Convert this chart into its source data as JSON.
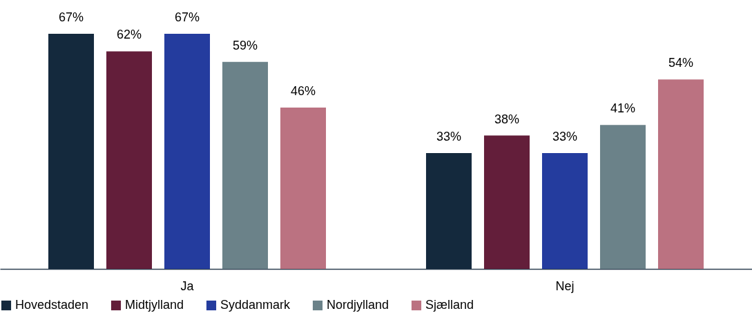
{
  "chart_data": {
    "type": "bar",
    "categories": [
      "Ja",
      "Nej"
    ],
    "series": [
      {
        "name": "Hovedstaden",
        "color": "#14293d",
        "values": [
          67,
          33
        ],
        "value_labels": [
          "67%",
          "33%"
        ]
      },
      {
        "name": "Midtjylland",
        "color": "#631e3a",
        "values": [
          62,
          38
        ],
        "value_labels": [
          "62%",
          "38%"
        ]
      },
      {
        "name": "Syddanmark",
        "color": "#243c9e",
        "values": [
          67,
          33
        ],
        "value_labels": [
          "67%",
          "33%"
        ]
      },
      {
        "name": "Nordjylland",
        "color": "#6b8289",
        "values": [
          59,
          41
        ],
        "value_labels": [
          "59%",
          "41%"
        ]
      },
      {
        "name": "Sjælland",
        "color": "#bb7281",
        "values": [
          46,
          54
        ],
        "value_labels": [
          "46%",
          "54%"
        ]
      }
    ],
    "legend": "bottom"
  }
}
